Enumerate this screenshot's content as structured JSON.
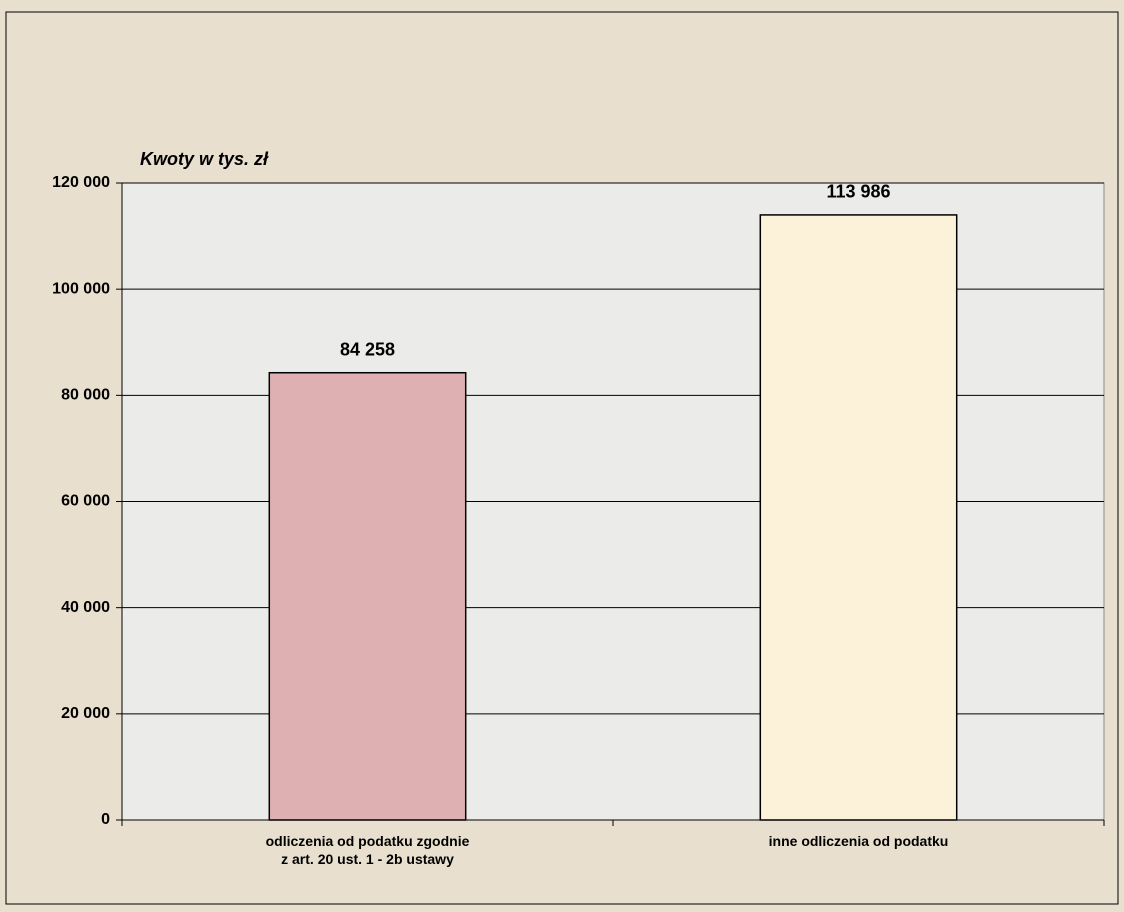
{
  "chart_data": {
    "type": "bar",
    "y_label": "Kwoty w tys. zł",
    "categories": [
      "odliczenia od podatku zgodnie\nz art. 20 ust. 1 - 2b ustawy",
      "inne odliczenia od podatku"
    ],
    "values": [
      84258,
      113986
    ],
    "value_labels": [
      "84 258",
      "113 986"
    ],
    "colors": [
      "#dfb0b2",
      "#fcf1d9"
    ],
    "ylim": [
      0,
      120000
    ],
    "yticks": [
      0,
      {
        "value": 20000,
        "label": "20 000"
      },
      {
        "value": 40000,
        "label": "40 000"
      },
      {
        "value": 60000,
        "label": "60 000"
      },
      {
        "value": 80000,
        "label": "80 000"
      },
      {
        "value": 100000,
        "label": "100 000"
      },
      {
        "value": 120000,
        "label": "120 000"
      }
    ],
    "grid": true
  }
}
